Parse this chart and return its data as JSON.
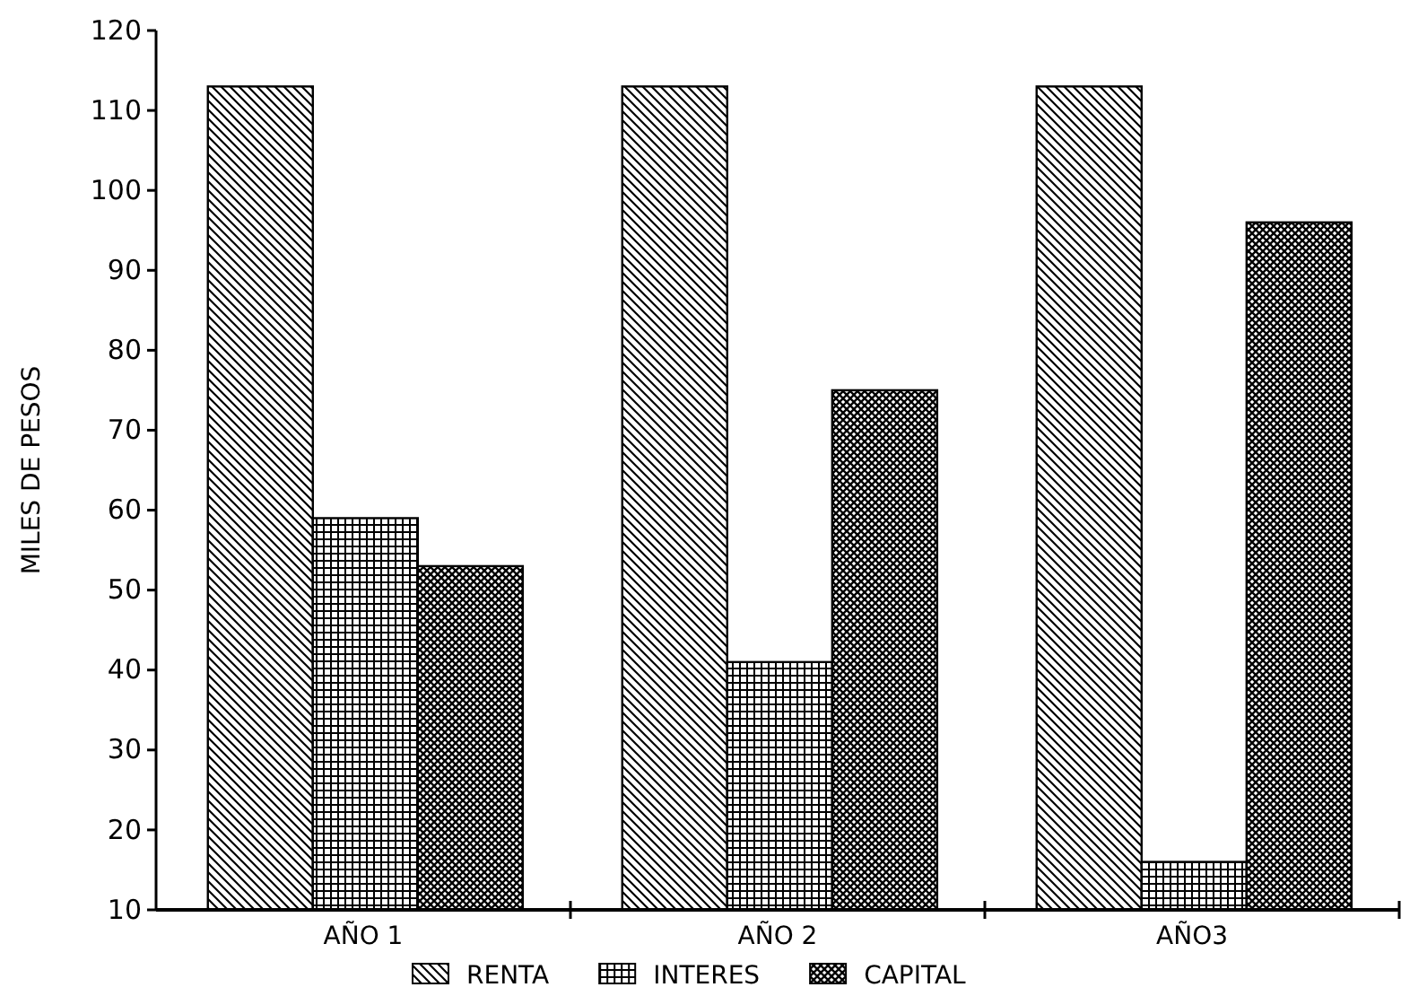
{
  "chart_data": {
    "type": "bar",
    "ylabel": "MILES DE PESOS",
    "categories": [
      "AÑO 1",
      "AÑO 2",
      "AÑO3"
    ],
    "ylim": [
      10,
      120
    ],
    "yticks": [
      10,
      20,
      30,
      40,
      50,
      60,
      70,
      80,
      90,
      100,
      110,
      120
    ],
    "grid": false,
    "legend": "bottom",
    "series": [
      {
        "name": "RENTA",
        "color": "#000000",
        "values": [
          113,
          113,
          113
        ]
      },
      {
        "name": "INTERES",
        "color": "#000000",
        "values": [
          59,
          41,
          16
        ]
      },
      {
        "name": "CAPITAL",
        "color": "#000000",
        "values": [
          53,
          75,
          96
        ]
      }
    ]
  }
}
